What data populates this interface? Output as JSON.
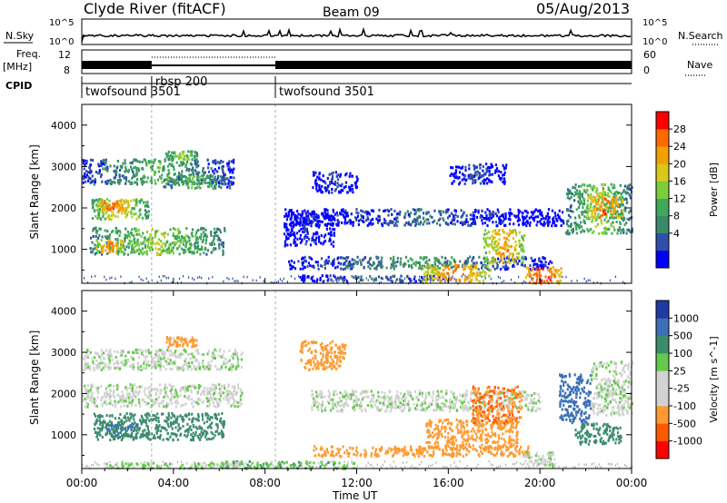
{
  "header": {
    "title": "Clyde River (fitACF)",
    "beam": "Beam 09",
    "date": "05/Aug/2013"
  },
  "aux": {
    "nsky_label": "N.Sky",
    "nsearch_label": "N.Search",
    "left_scale": [
      "10^5",
      "10^0"
    ],
    "right_scale": [
      "10^5",
      "10^0"
    ],
    "freq_label": [
      "Freq.",
      "[MHz]"
    ],
    "freq_ticks": [
      "12",
      "8"
    ],
    "nave_label": "Nave",
    "nave_ticks": [
      "60",
      "0"
    ],
    "cpid_label": "CPID",
    "cpid_segments": [
      {
        "name": "twofsound 3501",
        "start_hour": 0.0,
        "end_hour": 3.05
      },
      {
        "name": "rbsp 200",
        "start_hour": 3.05,
        "end_hour": 8.45
      },
      {
        "name": "twofsound 3501",
        "start_hour": 8.45,
        "end_hour": 24.0
      }
    ]
  },
  "chart_data": [
    {
      "type": "heatmap",
      "title": "",
      "xlabel": "",
      "ylabel": "Slant Range [km]",
      "xlim": [
        0,
        24
      ],
      "ylim": [
        180,
        4500
      ],
      "yticks": [
        1000,
        2000,
        3000,
        4000
      ],
      "colorbar": {
        "label": "Power [dB]",
        "range": [
          0,
          32
        ],
        "ticks": [
          "28",
          "24",
          "20",
          "16",
          "12",
          "8",
          "4"
        ],
        "colors": [
          "#0000ff",
          "#2e4faa",
          "#3a8a6a",
          "#3fa85a",
          "#7ccd3a",
          "#d8c81a",
          "#f0a000",
          "#ff6a00",
          "#ff0000"
        ]
      },
      "blobs": [
        {
          "t0": 0.0,
          "t1": 6.6,
          "r0": 2600,
          "r1": 3200,
          "v": 13
        },
        {
          "t0": 0.4,
          "t1": 2.9,
          "r0": 1750,
          "r1": 2250,
          "v": 21
        },
        {
          "t0": 0.6,
          "t1": 2.0,
          "r0": 1950,
          "r1": 2200,
          "v": 28
        },
        {
          "t0": 0.3,
          "t1": 6.2,
          "r0": 900,
          "r1": 1550,
          "v": 17
        },
        {
          "t0": 0.6,
          "t1": 1.8,
          "r0": 950,
          "r1": 1250,
          "v": 26
        },
        {
          "t0": 3.5,
          "t1": 6.5,
          "r0": 2500,
          "r1": 2800,
          "v": 15
        },
        {
          "t0": 3.6,
          "t1": 5.0,
          "r0": 3200,
          "r1": 3400,
          "v": 19
        },
        {
          "t0": 8.8,
          "t1": 21.0,
          "r0": 1600,
          "r1": 2000,
          "v": 7
        },
        {
          "t0": 9.0,
          "t1": 20.5,
          "r0": 550,
          "r1": 850,
          "v": 11
        },
        {
          "t0": 9.5,
          "t1": 16.0,
          "r0": 250,
          "r1": 400,
          "v": 9
        },
        {
          "t0": 14.8,
          "t1": 17.8,
          "r0": 250,
          "r1": 650,
          "v": 26
        },
        {
          "t0": 17.5,
          "t1": 19.3,
          "r0": 700,
          "r1": 1500,
          "v": 24
        },
        {
          "t0": 19.3,
          "t1": 20.9,
          "r0": 200,
          "r1": 600,
          "v": 30
        },
        {
          "t0": 21.1,
          "t1": 24.0,
          "r0": 1400,
          "r1": 2600,
          "v": 17
        },
        {
          "t0": 22.0,
          "t1": 23.6,
          "r0": 1800,
          "r1": 2300,
          "v": 27
        },
        {
          "t0": 10.0,
          "t1": 12.0,
          "r0": 2400,
          "r1": 2900,
          "v": 5
        },
        {
          "t0": 16.0,
          "t1": 18.5,
          "r0": 2600,
          "r1": 3100,
          "v": 6
        },
        {
          "t0": 8.8,
          "t1": 11.0,
          "r0": 1100,
          "r1": 1900,
          "v": 4
        }
      ]
    },
    {
      "type": "heatmap",
      "title": "",
      "xlabel": "Time UT",
      "ylabel": "Slant Range [km]",
      "xlim": [
        0,
        24
      ],
      "ylim": [
        180,
        4500
      ],
      "yticks": [
        1000,
        2000,
        3000,
        4000
      ],
      "xticks": [
        "00:00",
        "04:00",
        "08:00",
        "12:00",
        "16:00",
        "20:00",
        "00:00"
      ],
      "colorbar": {
        "label": "Velocity [m s^-1]",
        "range": [
          -1300,
          1300
        ],
        "ticks": [
          "1000",
          "500",
          "100",
          "25",
          "-25",
          "-100",
          "-500",
          "-1000"
        ],
        "colors": [
          "#ff0000",
          "#ff5a00",
          "#ff9a30",
          "#d2d2d2",
          "#d2d2d2",
          "#63c94a",
          "#3c8c6e",
          "#3b6fb6",
          "#1f3aa5"
        ]
      },
      "blobs": [
        {
          "t0": 0.0,
          "t1": 7.0,
          "r0": 2600,
          "r1": 3100,
          "v": 0
        },
        {
          "t0": 0.0,
          "t1": 7.0,
          "r0": 1700,
          "r1": 2250,
          "v": 0
        },
        {
          "t0": 0.5,
          "t1": 6.2,
          "r0": 900,
          "r1": 1550,
          "v": 300
        },
        {
          "t0": 1.0,
          "t1": 2.4,
          "r0": 1000,
          "r1": 1300,
          "v": 500
        },
        {
          "t0": 3.6,
          "t1": 5.0,
          "r0": 3150,
          "r1": 3400,
          "v": -150
        },
        {
          "t0": 9.5,
          "t1": 11.5,
          "r0": 2600,
          "r1": 3300,
          "v": -300
        },
        {
          "t0": 10.0,
          "t1": 20.0,
          "r0": 1600,
          "r1": 2100,
          "v": 0
        },
        {
          "t0": 10.0,
          "t1": 19.5,
          "r0": 500,
          "r1": 750,
          "v": -400
        },
        {
          "t0": 15.0,
          "t1": 19.0,
          "r0": 700,
          "r1": 1400,
          "v": -300
        },
        {
          "t0": 17.0,
          "t1": 19.2,
          "r0": 1300,
          "r1": 2200,
          "v": -500
        },
        {
          "t0": 19.2,
          "t1": 20.6,
          "r0": 250,
          "r1": 600,
          "v": 0
        },
        {
          "t0": 20.8,
          "t1": 22.2,
          "r0": 1300,
          "r1": 2500,
          "v": 700
        },
        {
          "t0": 22.2,
          "t1": 24.0,
          "r0": 1500,
          "r1": 2800,
          "v": 0
        },
        {
          "t0": 21.5,
          "t1": 23.5,
          "r0": 800,
          "r1": 1300,
          "v": 300
        },
        {
          "t0": 6.0,
          "t1": 12.0,
          "r0": 200,
          "r1": 380,
          "v": 80
        },
        {
          "t0": 1.0,
          "t1": 7.0,
          "r0": 200,
          "r1": 350,
          "v": 40
        }
      ]
    }
  ]
}
